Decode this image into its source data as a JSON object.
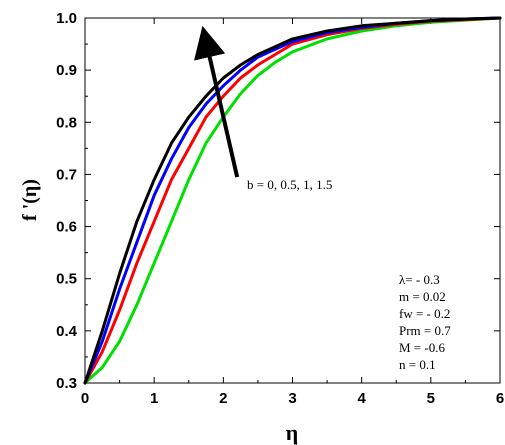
{
  "chart_data": {
    "type": "line",
    "xlabel": "η",
    "ylabel": "f '(η)",
    "xlim": [
      0,
      6
    ],
    "ylim": [
      0.3,
      1.0
    ],
    "x_ticks": [
      0,
      1,
      2,
      3,
      4,
      5,
      6
    ],
    "y_ticks": [
      0.3,
      0.4,
      0.5,
      0.6,
      0.7,
      0.8,
      0.9,
      1.0
    ],
    "x_tick_labels": [
      "0",
      "1",
      "2",
      "3",
      "4",
      "5",
      "6"
    ],
    "y_tick_labels": [
      "0.3",
      "0.4",
      "0.5",
      "0.6",
      "0.7",
      "0.8",
      "0.9",
      "1.0"
    ],
    "grid": false,
    "x": [
      0,
      0.25,
      0.5,
      0.75,
      1,
      1.25,
      1.5,
      1.75,
      2,
      2.25,
      2.5,
      2.75,
      3,
      3.5,
      4,
      4.5,
      5,
      5.5,
      6
    ],
    "series": [
      {
        "color": "#00e000",
        "values": [
          0.3,
          0.33,
          0.38,
          0.45,
          0.53,
          0.61,
          0.69,
          0.76,
          0.81,
          0.855,
          0.89,
          0.915,
          0.935,
          0.96,
          0.975,
          0.985,
          0.992,
          0.996,
          1.0
        ]
      },
      {
        "color": "#ff0000",
        "values": [
          0.3,
          0.36,
          0.44,
          0.53,
          0.61,
          0.69,
          0.75,
          0.81,
          0.85,
          0.885,
          0.91,
          0.93,
          0.95,
          0.968,
          0.98,
          0.988,
          0.994,
          0.997,
          1.0
        ]
      },
      {
        "color": "#0000ff",
        "values": [
          0.3,
          0.38,
          0.48,
          0.57,
          0.66,
          0.73,
          0.79,
          0.835,
          0.87,
          0.9,
          0.925,
          0.94,
          0.955,
          0.972,
          0.982,
          0.99,
          0.995,
          0.998,
          1.0
        ]
      },
      {
        "color": "#000000",
        "values": [
          0.3,
          0.4,
          0.51,
          0.61,
          0.69,
          0.76,
          0.81,
          0.85,
          0.885,
          0.91,
          0.93,
          0.945,
          0.96,
          0.975,
          0.985,
          0.99,
          0.995,
          0.998,
          1.0
        ]
      }
    ],
    "arrow": {
      "from": [
        2.2,
        0.695
      ],
      "to": [
        1.75,
        0.955
      ]
    },
    "annotation_arrow": "b = 0, 0.5, 1, 1.5",
    "params": [
      "λ= - 0.3",
      "m =  0.02",
      "fw = - 0.2",
      "Prm = 0.7",
      "M = -0.6",
      "n = 0.1"
    ]
  }
}
